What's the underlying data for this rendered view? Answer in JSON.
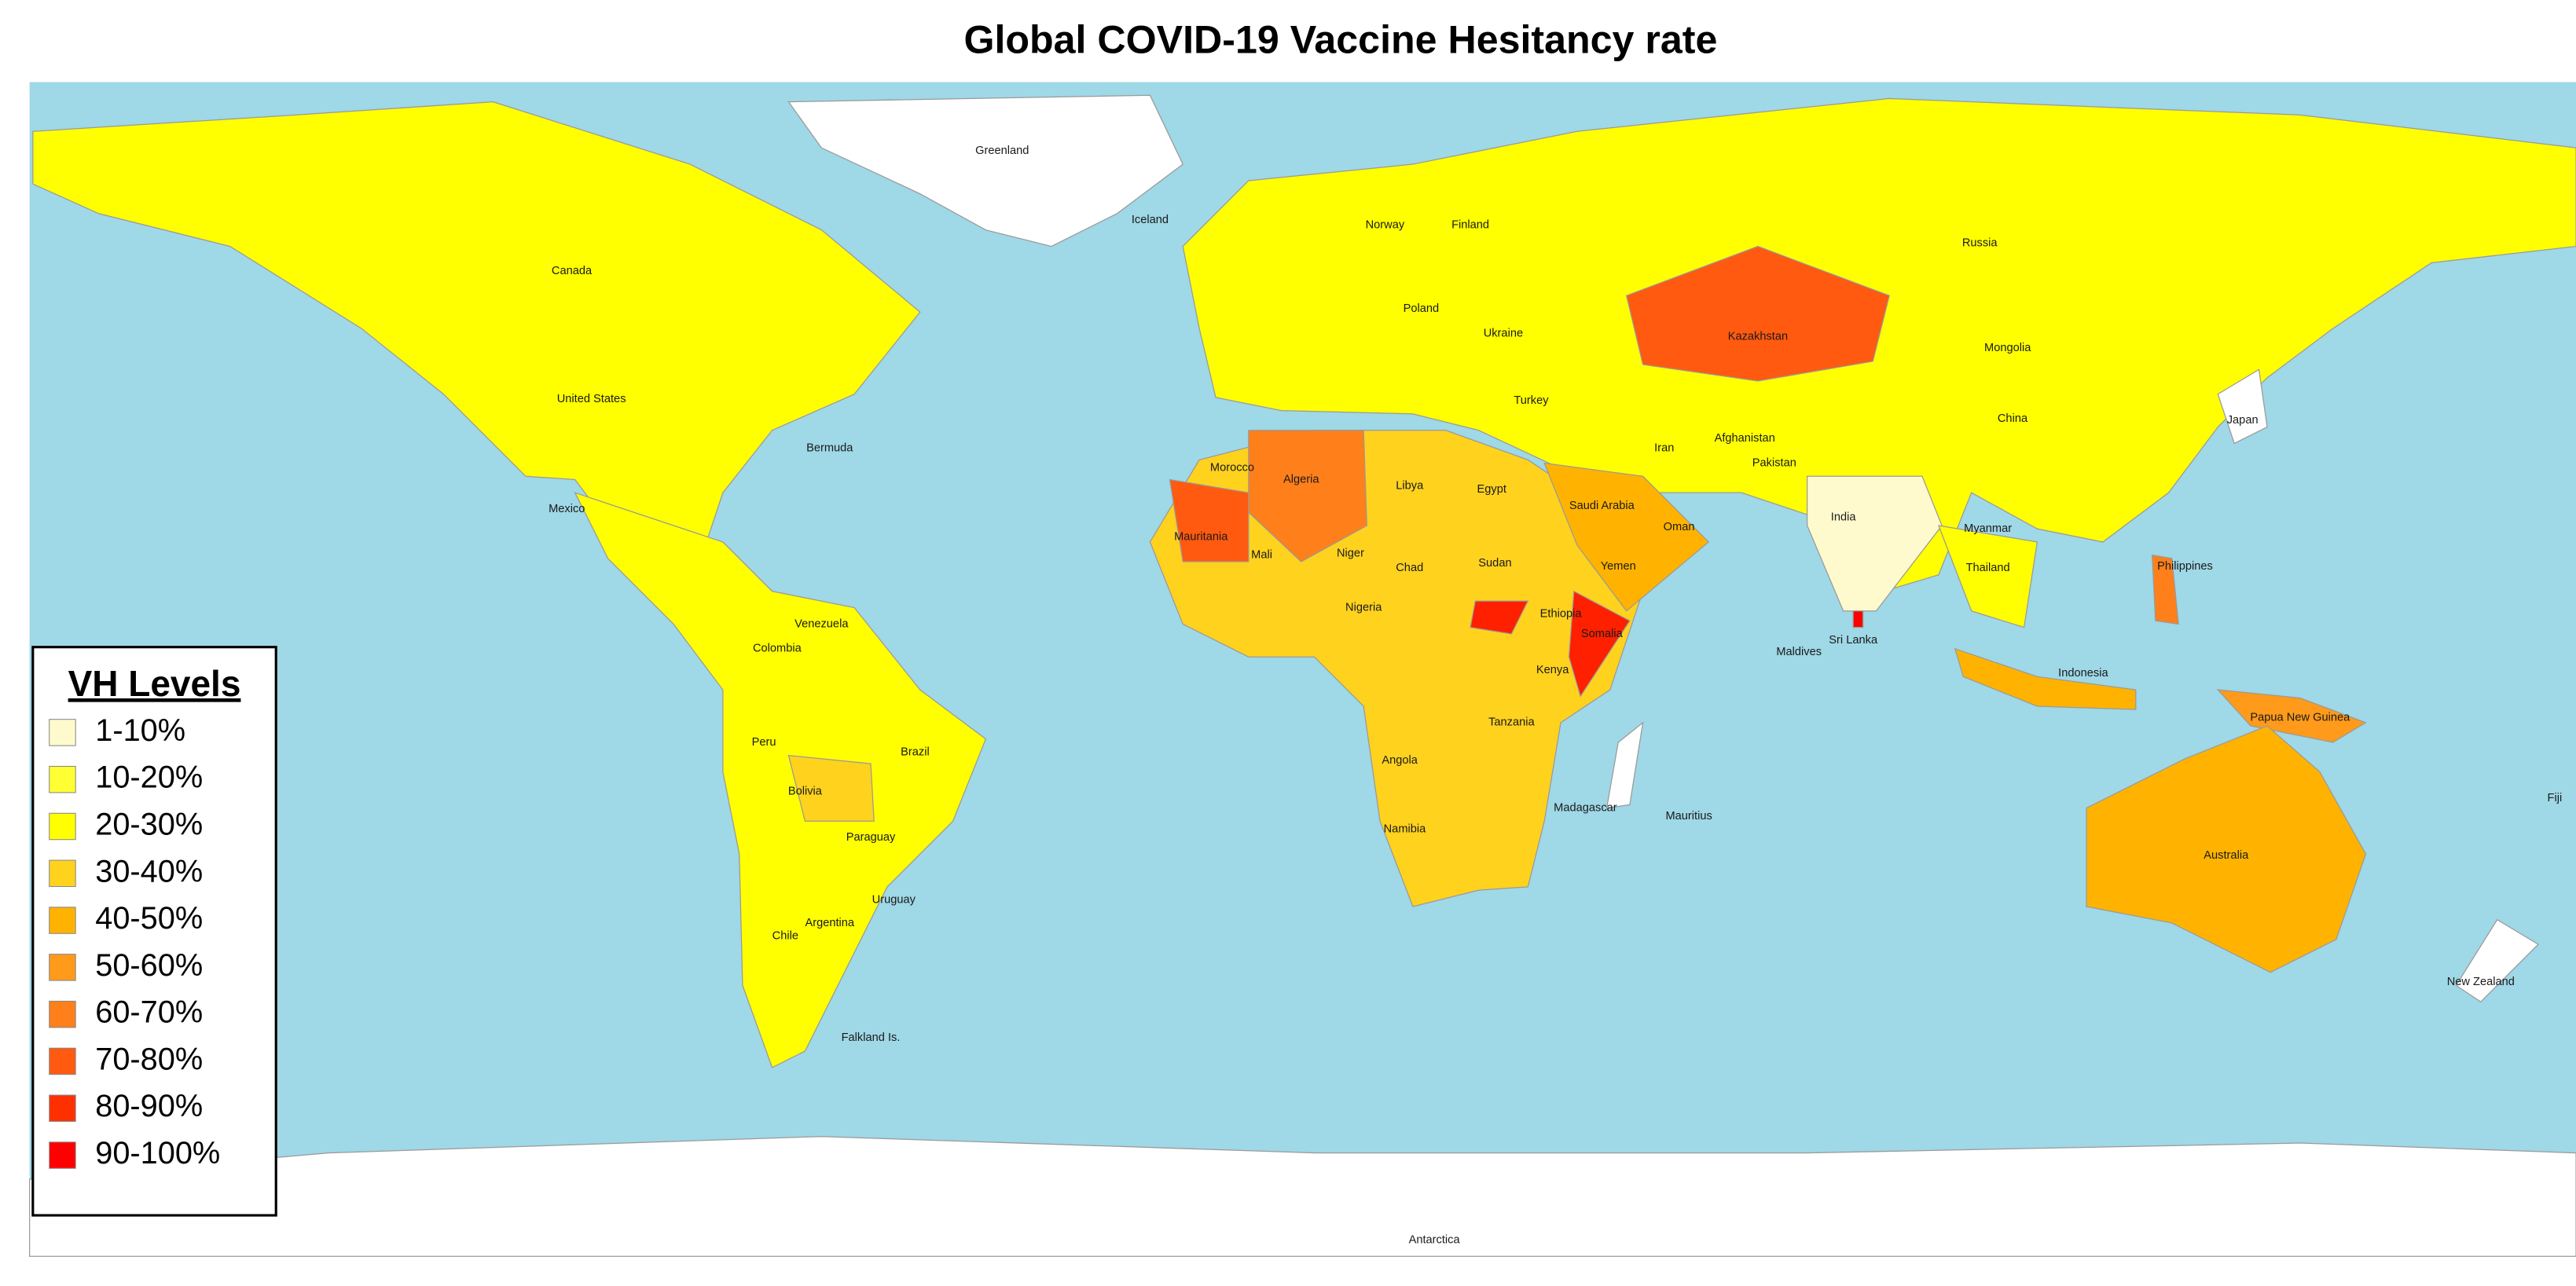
{
  "title": "Global COVID-19 Vaccine Hesitancy rate",
  "legend": {
    "title": "VH Levels",
    "items": [
      {
        "label": "1-10%",
        "color": "#fffacd"
      },
      {
        "label": "10-20%",
        "color": "#ffff33"
      },
      {
        "label": "20-30%",
        "color": "#ffff00"
      },
      {
        "label": "30-40%",
        "color": "#ffd21e"
      },
      {
        "label": "40-50%",
        "color": "#ffb300"
      },
      {
        "label": "50-60%",
        "color": "#ff9a1a"
      },
      {
        "label": "60-70%",
        "color": "#ff7f1a"
      },
      {
        "label": "70-80%",
        "color": "#ff5a10"
      },
      {
        "label": "80-90%",
        "color": "#ff3000"
      },
      {
        "label": "90-100%",
        "color": "#ff0000"
      }
    ]
  },
  "labels": [
    "Greenland",
    "Canada",
    "United States",
    "Mexico",
    "Russia",
    "China",
    "Mongolia",
    "India",
    "Kazakhstan",
    "Iran",
    "Brazil",
    "Argentina",
    "Peru",
    "Colombia",
    "Bolivia",
    "Algeria",
    "Libya",
    "Egypt",
    "Sudan",
    "Chad",
    "Niger",
    "Mali",
    "Mauritania",
    "Australia",
    "Indonesia",
    "Philippines",
    "Antarctica",
    "Iceland",
    "Norway",
    "Finland",
    "Turkey",
    "Saudi Arabia",
    "Pakistan",
    "Myanmar",
    "Thailand",
    "Japan",
    "Madagascar",
    "Namibia",
    "Angola",
    "Tanzania",
    "Kenya",
    "Ethiopia",
    "Somalia",
    "Nigeria",
    "Chile",
    "Paraguay",
    "Uruguay",
    "Venezuela",
    "Ukraine",
    "Poland",
    "Mauritius",
    "Fiji",
    "New Zealand",
    "Papua New Guinea",
    "Sri Lanka",
    "Yemen",
    "Oman",
    "Afghanistan",
    "Morocco",
    "Bermuda",
    "Falkland Is.",
    "Maldives"
  ]
}
